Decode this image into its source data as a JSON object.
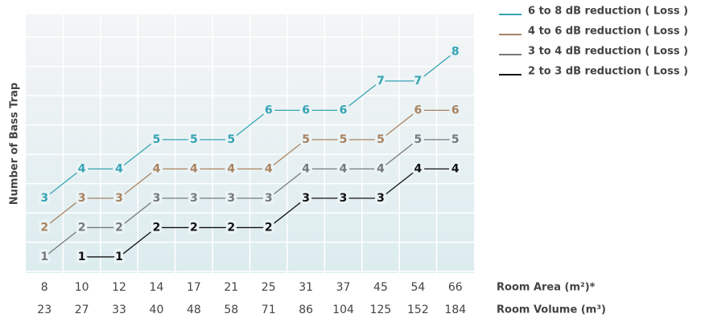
{
  "chart_data": {
    "type": "line",
    "y_label": "Number of Bass Trap",
    "x_label": "Room Area (m²)*",
    "x2_label": "Room Volume (m³)",
    "categories": [
      "8",
      "10",
      "12",
      "14",
      "17",
      "21",
      "25",
      "31",
      "37",
      "45",
      "54",
      "66"
    ],
    "categories2": [
      "23",
      "27",
      "33",
      "40",
      "48",
      "58",
      "71",
      "86",
      "104",
      "125",
      "152",
      "184"
    ],
    "ylim": [
      0.45,
      9.27
    ],
    "series": [
      {
        "name": "6 to 8 dB reduction ( Loss )",
        "color": "#35a3b4",
        "values": [
          3,
          4,
          4,
          5,
          5,
          5,
          6,
          6,
          6,
          7,
          7,
          8
        ]
      },
      {
        "name": "4 to 6 dB reduction ( Loss )",
        "color": "#a9825f",
        "values": [
          2,
          3,
          3,
          4,
          4,
          4,
          4,
          5,
          5,
          5,
          6,
          6
        ]
      },
      {
        "name": "3 to 4 dB reduction ( Loss )",
        "color": "#75797c",
        "values": [
          1,
          2,
          2,
          3,
          3,
          3,
          3,
          4,
          4,
          4,
          5,
          5
        ]
      },
      {
        "name": "2 to 3 dB reduction ( Loss )",
        "color": "#111111",
        "values": [
          null,
          1,
          1,
          2,
          2,
          2,
          2,
          3,
          3,
          3,
          4,
          4
        ]
      }
    ]
  }
}
